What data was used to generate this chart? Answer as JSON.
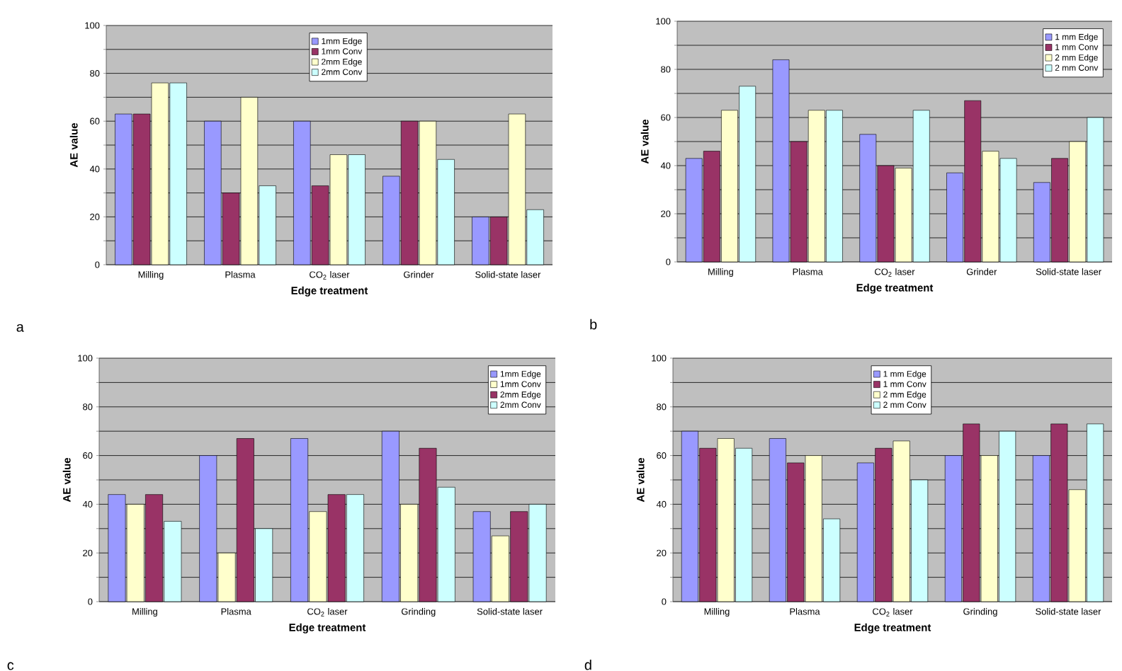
{
  "chart_data": [
    {
      "type": "bar",
      "xlabel": "Edge treatment",
      "ylabel": "AE value",
      "categories": [
        "Milling",
        "Plasma",
        "CO$_{2}$ laser",
        "Grinder",
        "Solid-state laser"
      ],
      "ylim": [
        0,
        100
      ],
      "yticks": [
        0,
        {
          "value": 10,
          "label": null
        },
        20,
        {
          "value": 30,
          "label": null
        },
        40,
        {
          "value": 50,
          "label": null
        },
        60,
        {
          "value": 70,
          "label": null
        },
        80,
        {
          "value": 90,
          "label": null
        },
        100
      ],
      "grid": "y",
      "legend": "top",
      "annotations": [
        "a"
      ],
      "series": [
        {
          "name": "1mm Edge",
          "color": "#9999ff",
          "values": [
            63,
            60,
            60,
            37,
            20
          ]
        },
        {
          "name": "1mm Conv",
          "color": "#993366",
          "values": [
            63,
            30,
            33,
            60,
            20
          ]
        },
        {
          "name": "2mm Edge",
          "color": "#ffffcc",
          "values": [
            76,
            70,
            46,
            60,
            63
          ]
        },
        {
          "name": "2mm Conv",
          "color": "#ccffff",
          "values": [
            76,
            33,
            46,
            44,
            23
          ]
        }
      ]
    },
    {
      "type": "bar",
      "xlabel": "Edge treatment",
      "ylabel": "AE value",
      "categories": [
        "Milling",
        "Plasma",
        "CO$_{2}$ laser",
        "Grinder",
        "Solid-state laser"
      ],
      "ylim": [
        0,
        100
      ],
      "yticks": [
        0,
        {
          "value": 10,
          "label": null
        },
        20,
        {
          "value": 30,
          "label": null
        },
        40,
        {
          "value": 50,
          "label": null
        },
        60,
        {
          "value": 70,
          "label": null
        },
        80,
        {
          "value": 90,
          "label": null
        },
        100
      ],
      "grid": "y",
      "legend": "top right",
      "annotations": [
        "b"
      ],
      "series": [
        {
          "name": "1 mm Edge",
          "color": "#9999ff",
          "values": [
            43,
            84,
            53,
            37,
            33
          ]
        },
        {
          "name": "1 mm Conv",
          "color": "#993366",
          "values": [
            46,
            50,
            40,
            67,
            43
          ]
        },
        {
          "name": "2 mm Edge",
          "color": "#ffffcc",
          "values": [
            63,
            63,
            39,
            46,
            50
          ]
        },
        {
          "name": "2 mm Conv",
          "color": "#ccffff",
          "values": [
            73,
            63,
            63,
            43,
            60
          ]
        }
      ]
    },
    {
      "type": "bar",
      "xlabel": "Edge treatment",
      "ylabel": "AE value",
      "categories": [
        "Milling",
        "Plasma",
        "CO$_{2}$ laser",
        "Grinding",
        "Solid-state laser"
      ],
      "ylim": [
        0,
        100
      ],
      "yticks": [
        0,
        {
          "value": 10,
          "label": null
        },
        20,
        {
          "value": 30,
          "label": null
        },
        40,
        {
          "value": 50,
          "label": null
        },
        60,
        {
          "value": 70,
          "label": null
        },
        80,
        {
          "value": 90,
          "label": null
        },
        100
      ],
      "grid": "y",
      "legend": "top right",
      "annotations": [
        "c"
      ],
      "series": [
        {
          "name": "1mm Edge",
          "color": "#9999ff",
          "values": [
            44,
            60,
            67,
            70,
            37
          ]
        },
        {
          "name": "1mm Conv",
          "color": "#ffffcc",
          "values": [
            40,
            20,
            37,
            40,
            27
          ]
        },
        {
          "name": "2mm Edge",
          "color": "#993366",
          "values": [
            44,
            67,
            44,
            63,
            37
          ]
        },
        {
          "name": "2mm Conv",
          "color": "#ccffff",
          "values": [
            33,
            30,
            44,
            47,
            40
          ]
        }
      ]
    },
    {
      "type": "bar",
      "xlabel": "Edge treatment",
      "ylabel": "AE value",
      "categories": [
        "Milling",
        "Plasma",
        "CO$_{2}$ laser",
        "Grinding",
        "Solid-state laser"
      ],
      "ylim": [
        0,
        100
      ],
      "yticks": [
        0,
        {
          "value": 10,
          "label": null
        },
        20,
        {
          "value": 30,
          "label": null
        },
        40,
        {
          "value": 50,
          "label": null
        },
        60,
        {
          "value": 70,
          "label": null
        },
        80,
        {
          "value": 90,
          "label": null
        },
        100
      ],
      "grid": "y",
      "legend": "top",
      "annotations": [
        "d"
      ],
      "series": [
        {
          "name": "1 mm Edge",
          "color": "#9999ff",
          "values": [
            70,
            67,
            57,
            60,
            60
          ]
        },
        {
          "name": "1 mm Conv",
          "color": "#993366",
          "values": [
            63,
            57,
            63,
            73,
            73
          ]
        },
        {
          "name": "2 mm Edge",
          "color": "#ffffcc",
          "values": [
            67,
            60,
            66,
            60,
            46
          ]
        },
        {
          "name": "2 mm Conv",
          "color": "#ccffff",
          "values": [
            63,
            34,
            50,
            70,
            73
          ]
        }
      ]
    }
  ]
}
